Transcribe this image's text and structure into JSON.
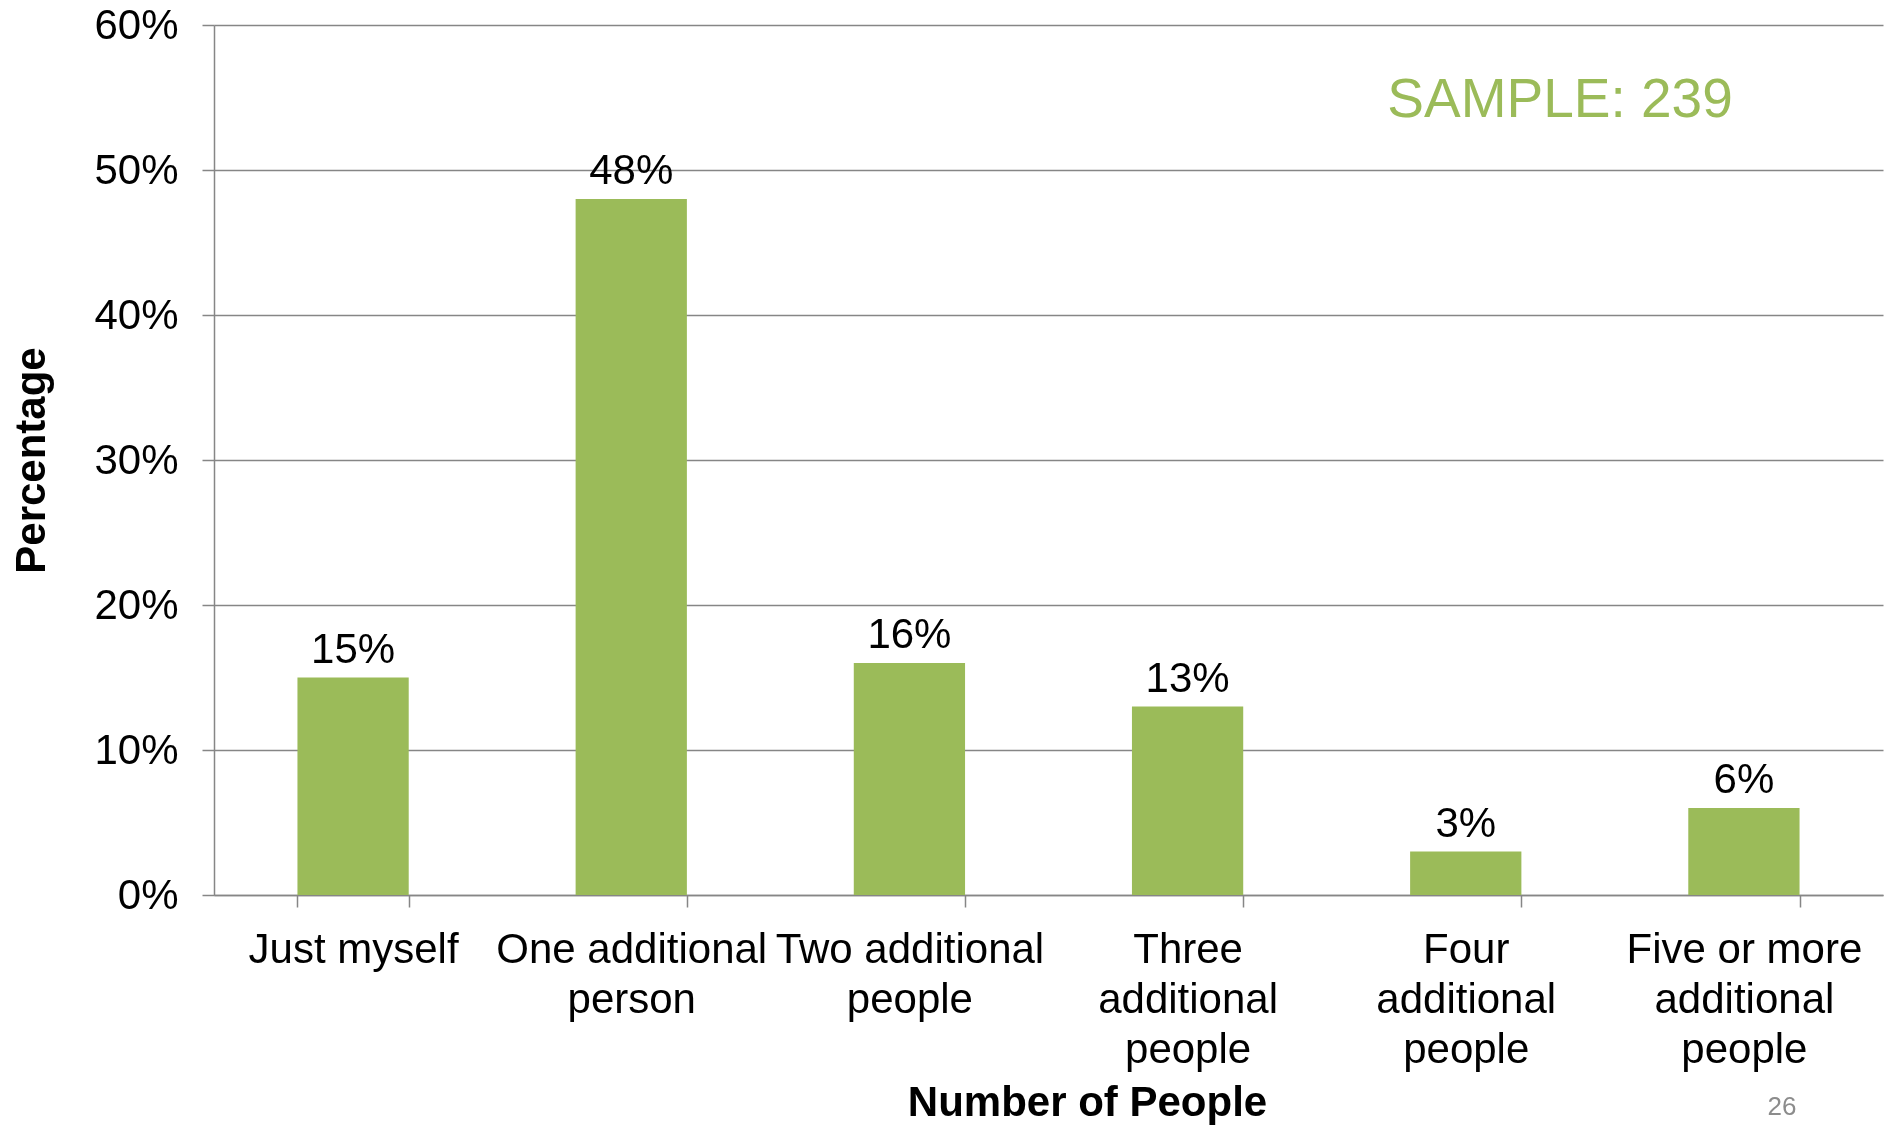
{
  "chart_data": {
    "type": "bar",
    "categories": [
      "Just myself",
      "One additional person",
      "Two additional people",
      "Three additional people",
      "Four additional people",
      "Five or more additional people"
    ],
    "values": [
      15,
      48,
      16,
      13,
      3,
      6
    ],
    "color": "#9bbb59",
    "value_labels": [
      "15%",
      "48%",
      "16%",
      "13%",
      "3%",
      "6%"
    ],
    "xlabel": "Number of People",
    "ylabel": "Percentage",
    "ylim": [
      0,
      60
    ],
    "yticks": [
      {
        "value": 0,
        "label": "0%"
      },
      {
        "value": 10,
        "label": "10%"
      },
      {
        "value": 20,
        "label": "20%"
      },
      {
        "value": 30,
        "label": "30%"
      },
      {
        "value": 40,
        "label": "40%"
      },
      {
        "value": 50,
        "label": "50%"
      },
      {
        "value": 60,
        "label": "60%"
      }
    ],
    "grid": "y",
    "annotations": [
      "SAMPLE: 239",
      "26"
    ]
  }
}
